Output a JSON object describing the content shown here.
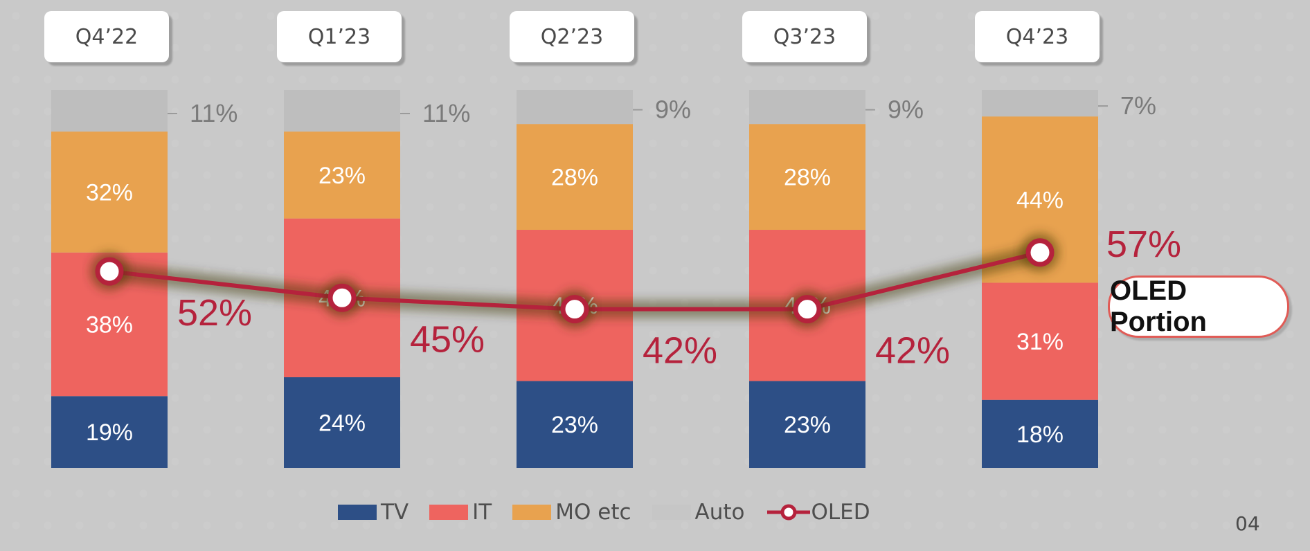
{
  "chart_data": {
    "type": "bar",
    "stacked": true,
    "categories": [
      "Q4’22",
      "Q1’23",
      "Q2’23",
      "Q3’23",
      "Q4’23"
    ],
    "series": [
      {
        "name": "TV",
        "values": [
          19,
          24,
          23,
          23,
          18
        ],
        "value_labels": [
          "19%",
          "24%",
          "23%",
          "23%",
          "18%"
        ],
        "color": "#2d4f86"
      },
      {
        "name": "IT",
        "values": [
          38,
          42,
          40,
          40,
          31
        ],
        "value_labels": [
          "38%",
          "42%",
          "40%",
          "40%",
          "31%"
        ],
        "color": "#ee645f"
      },
      {
        "name": "MO etc",
        "values": [
          32,
          23,
          28,
          28,
          44
        ],
        "value_labels": [
          "32%",
          "23%",
          "28%",
          "28%",
          "44%"
        ],
        "color": "#e8a24f"
      },
      {
        "name": "Auto",
        "values": [
          11,
          11,
          9,
          9,
          7
        ],
        "value_labels": [
          "11%",
          "11%",
          "9%",
          "9%",
          "7%"
        ],
        "color": "#bebebe"
      }
    ],
    "line_series": {
      "name": "OLED",
      "values": [
        52,
        45,
        42,
        42,
        57
      ],
      "value_labels": [
        "52%",
        "45%",
        "42%",
        "42%",
        "57%"
      ],
      "color": "#b5223c"
    },
    "ylim": [
      0,
      100
    ],
    "legend_position": "bottom"
  },
  "legend": {
    "tv": "TV",
    "it": "IT",
    "mo": "MO etc",
    "auto": "Auto",
    "oled": "OLED"
  },
  "badge": {
    "label": "OLED Portion"
  },
  "page_number": "04"
}
